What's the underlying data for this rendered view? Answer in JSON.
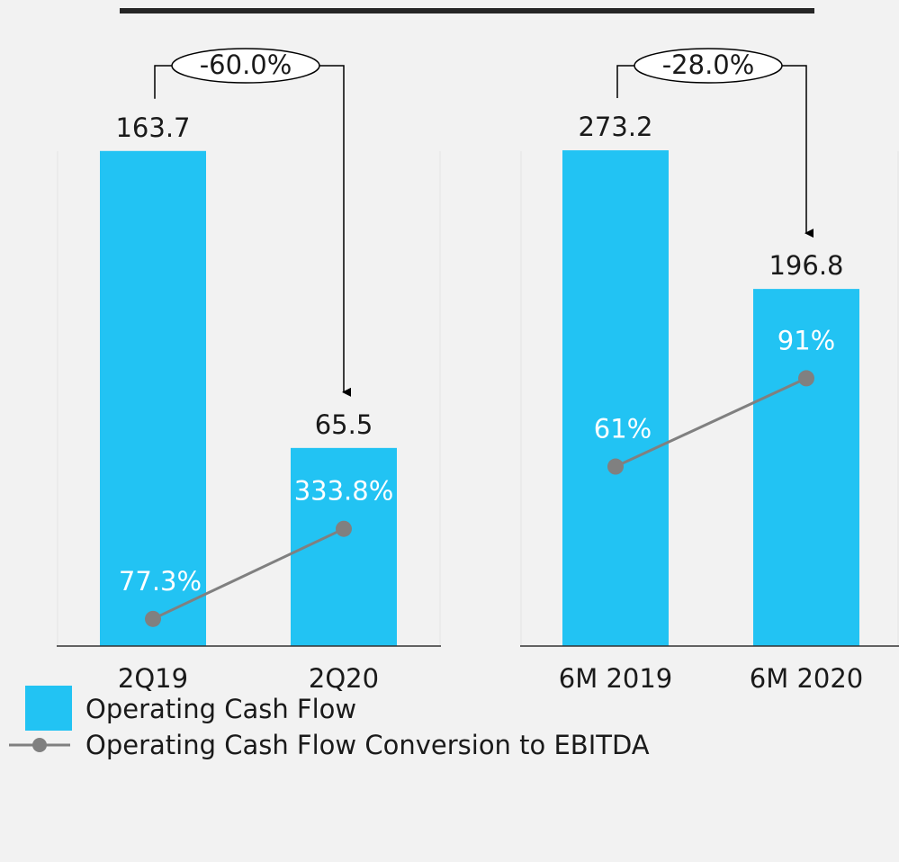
{
  "chart_data": [
    {
      "type": "bar",
      "categories": [
        "2Q19",
        "2Q20"
      ],
      "series": [
        {
          "name": "Operating Cash Flow",
          "color": "#22c3f3",
          "values": [
            163.7,
            65.5
          ]
        },
        {
          "name": "Operating Cash Flow Conversion to EBITDA",
          "color": "#808080",
          "axis": "y2",
          "values": [
            77.3,
            333.8
          ],
          "value_labels": [
            "77.3%",
            "333.8%"
          ]
        }
      ],
      "ylim": [
        0,
        180
      ],
      "y2lim": [
        0,
        1550
      ],
      "annotation": "-60.0%"
    },
    {
      "type": "bar",
      "categories": [
        "6M 2019",
        "6M 2020"
      ],
      "series": [
        {
          "color": "#22c3f3",
          "values": [
            273.2,
            196.8
          ]
        },
        {
          "color": "#808080",
          "axis": "y2",
          "values": [
            61,
            91
          ],
          "value_labels": [
            "61%",
            "91%"
          ]
        }
      ],
      "ylim": [
        0,
        300
      ],
      "y2lim": [
        0,
        185
      ],
      "annotation": "-28.0%"
    }
  ]
}
